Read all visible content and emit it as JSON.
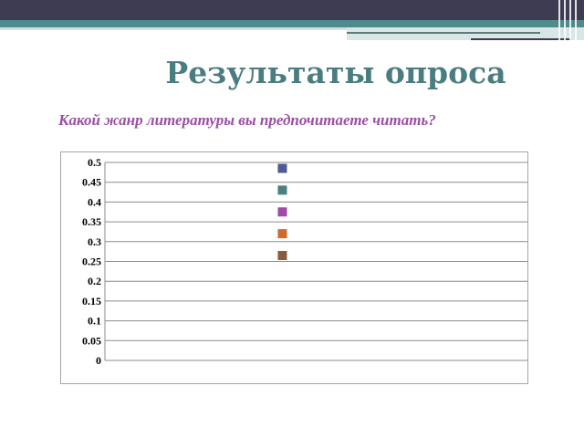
{
  "slide": {
    "title": "Результаты опроса",
    "question": "Какой жанр литературы вы предпочитаете читать?"
  },
  "colors": {
    "title": "#4a7d80",
    "question": "#9a4fa3",
    "gridline": "#8c8c8c"
  },
  "chart_data": {
    "type": "scatter",
    "title": "",
    "xlabel": "",
    "ylabel": "",
    "ylim": [
      0,
      0.5
    ],
    "y_ticks": [
      "0",
      "0.05",
      "0.1",
      "0.15",
      "0.2",
      "0.25",
      "0.3",
      "0.35",
      "0.4",
      "0.45",
      "0.5"
    ],
    "grid": true,
    "legend": "none",
    "series": [
      {
        "values": [
          0.485
        ],
        "color": "#4e5a96"
      },
      {
        "values": [
          0.43
        ],
        "color": "#4a8080"
      },
      {
        "values": [
          0.375
        ],
        "color": "#a04ca6"
      },
      {
        "values": [
          0.32
        ],
        "color": "#d06a2c"
      },
      {
        "values": [
          0.265
        ],
        "color": "#8c5a3c"
      }
    ]
  }
}
